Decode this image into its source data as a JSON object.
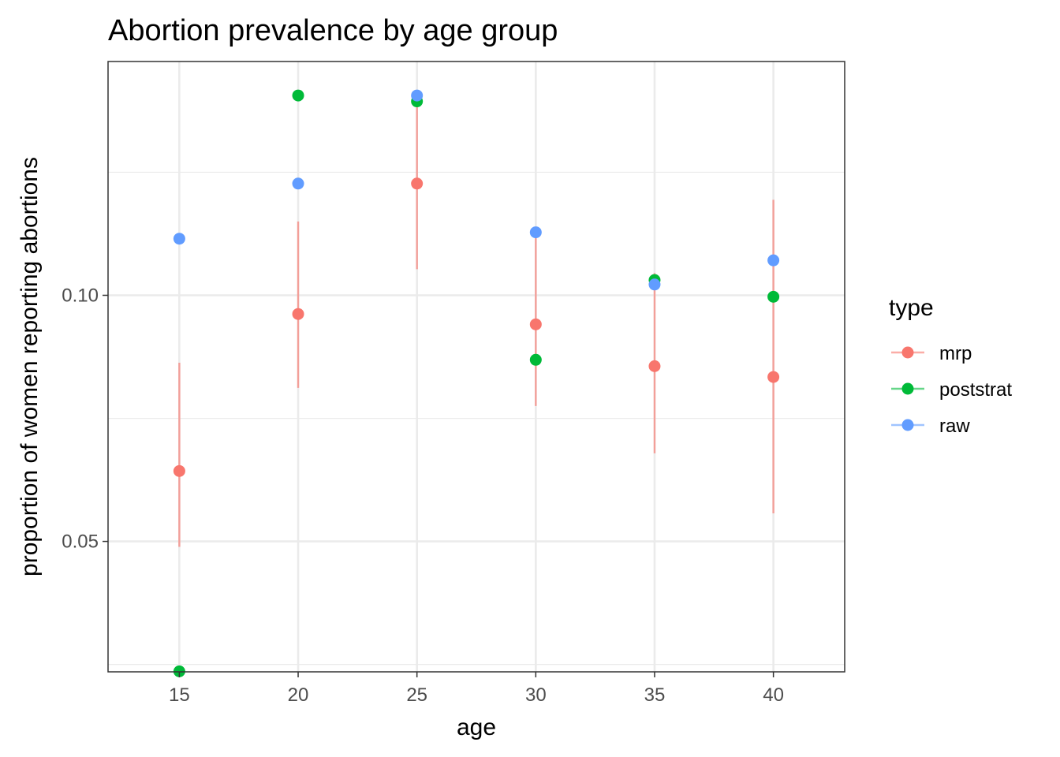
{
  "chart_data": {
    "type": "scatter",
    "title": "Abortion prevalence by age group",
    "xlabel": "age",
    "ylabel": "proportion of women reporting abortions",
    "xlim": [
      12,
      43
    ],
    "ylim": [
      0.0235,
      0.1475
    ],
    "x_ticks": [
      15,
      20,
      25,
      30,
      35,
      40
    ],
    "x_tick_labels": [
      "15",
      "20",
      "25",
      "30",
      "35",
      "40"
    ],
    "y_ticks": [
      0.05,
      0.1
    ],
    "y_tick_labels": [
      "0.05",
      "0.10"
    ],
    "y_minor_ticks": [
      0.025,
      0.075,
      0.125
    ],
    "grid": true,
    "legend": {
      "title": "type",
      "position": "right",
      "entries": [
        "mrp",
        "poststrat",
        "raw"
      ]
    },
    "series": [
      {
        "name": "mrp",
        "color": "#F8766D",
        "x": [
          15,
          20,
          25,
          30,
          35,
          40
        ],
        "y": [
          0.0643,
          0.0962,
          0.1227,
          0.0941,
          0.0856,
          0.0834
        ],
        "ymin": [
          0.0489,
          0.0812,
          0.1053,
          0.0775,
          0.0679,
          0.0557
        ],
        "ymax": [
          0.0863,
          0.115,
          0.14,
          0.1138,
          0.1045,
          0.1194
        ]
      },
      {
        "name": "poststrat",
        "color": "#00BA38",
        "x": [
          15,
          20,
          25,
          30,
          35,
          40
        ],
        "y": [
          0.0236,
          0.1406,
          0.1394,
          0.0869,
          0.1031,
          0.0997
        ]
      },
      {
        "name": "raw",
        "color": "#619CFF",
        "x": [
          15,
          20,
          25,
          30,
          35,
          40
        ],
        "y": [
          0.1115,
          0.1227,
          0.1406,
          0.1128,
          0.1022,
          0.1071
        ]
      }
    ]
  }
}
